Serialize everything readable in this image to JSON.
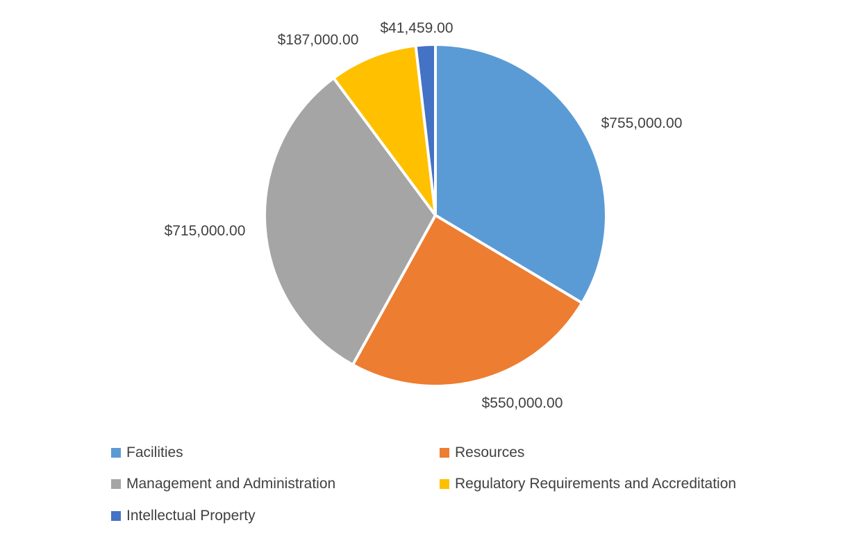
{
  "chart_data": {
    "type": "pie",
    "title": "",
    "categories": [
      "Facilities",
      "Resources",
      "Management and Administration",
      "Regulatory Requirements and Accreditation",
      "Intellectual Property"
    ],
    "values": [
      755000,
      550000,
      715000,
      187000,
      41459
    ],
    "value_labels": [
      "$755,000.00",
      "$550,000.00",
      "$715,000.00",
      "$187,000.00",
      "$41,459.00"
    ],
    "colors": [
      "#5b9bd5",
      "#ed7d31",
      "#a5a5a5",
      "#ffc000",
      "#4472c4"
    ],
    "start_angle": "12 o'clock",
    "direction": "clockwise",
    "legend_position": "bottom"
  }
}
